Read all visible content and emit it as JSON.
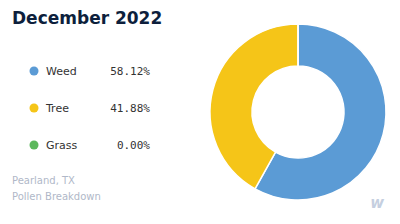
{
  "chart_data": {
    "type": "pie",
    "title": "December 2022",
    "subtitle": "Pearland, TX\nPollen Breakdown",
    "categories": [
      "Weed",
      "Tree",
      "Grass"
    ],
    "values": [
      58.12,
      41.88,
      0.001
    ],
    "value_labels": [
      "58.12%",
      "41.88%",
      "0.00%"
    ],
    "colors": [
      "#5b9bd5",
      "#f5c518",
      "#5cb85c"
    ],
    "legend": "left",
    "annotations": [
      "w"
    ]
  }
}
